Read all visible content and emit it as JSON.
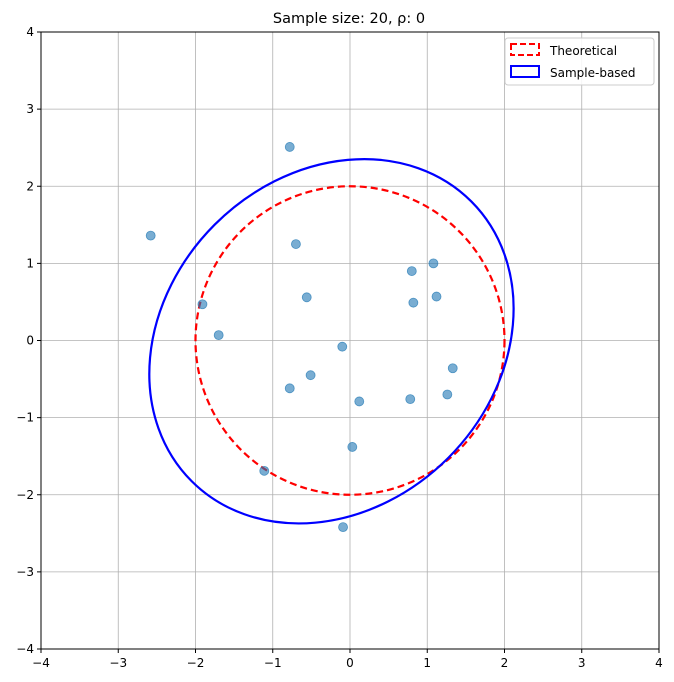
{
  "chart_data": {
    "type": "scatter",
    "title": "Sample size: 20, ρ: 0",
    "xlabel": "",
    "ylabel": "",
    "xlim": [
      -4,
      4
    ],
    "ylim": [
      -4,
      4
    ],
    "x_ticks": [
      -4,
      -3,
      -2,
      -1,
      0,
      1,
      2,
      3,
      4
    ],
    "y_ticks": [
      -4,
      -3,
      -2,
      -1,
      0,
      1,
      2,
      3,
      4
    ],
    "x_tick_labels": [
      "−4",
      "−3",
      "−2",
      "−1",
      "0",
      "1",
      "2",
      "3",
      "4"
    ],
    "y_tick_labels": [
      "−4",
      "−3",
      "−2",
      "−1",
      "0",
      "1",
      "2",
      "3",
      "4"
    ],
    "grid": true,
    "legend_position": "top-right",
    "points": [
      {
        "x": -0.78,
        "y": 2.51
      },
      {
        "x": -2.58,
        "y": 1.36
      },
      {
        "x": -0.7,
        "y": 1.25
      },
      {
        "x": -1.91,
        "y": 0.47
      },
      {
        "x": -1.7,
        "y": 0.07
      },
      {
        "x": -0.56,
        "y": 0.56
      },
      {
        "x": -0.1,
        "y": -0.08
      },
      {
        "x": -0.78,
        "y": -0.62
      },
      {
        "x": -0.51,
        "y": -0.45
      },
      {
        "x": 0.12,
        "y": -0.79
      },
      {
        "x": 0.78,
        "y": -0.76
      },
      {
        "x": 0.03,
        "y": -1.38
      },
      {
        "x": -1.11,
        "y": -1.69
      },
      {
        "x": -0.09,
        "y": -2.42
      },
      {
        "x": 0.8,
        "y": 0.9
      },
      {
        "x": 1.08,
        "y": 1.0
      },
      {
        "x": 1.12,
        "y": 0.57
      },
      {
        "x": 0.82,
        "y": 0.49
      },
      {
        "x": 1.33,
        "y": -0.36
      },
      {
        "x": 1.26,
        "y": -0.7
      }
    ],
    "ellipses": [
      {
        "name": "Theoretical",
        "center": [
          0,
          0
        ],
        "semi_axes": [
          2.0,
          2.0
        ],
        "angle_deg": 0,
        "style": "dashed",
        "color": "#ff0000"
      },
      {
        "name": "Sample-based",
        "center": [
          -0.24,
          -0.01
        ],
        "semi_axes": [
          2.56,
          2.14
        ],
        "angle_deg": 45,
        "style": "solid",
        "color": "#0000ff"
      }
    ],
    "point_color": "#1f77b4"
  }
}
